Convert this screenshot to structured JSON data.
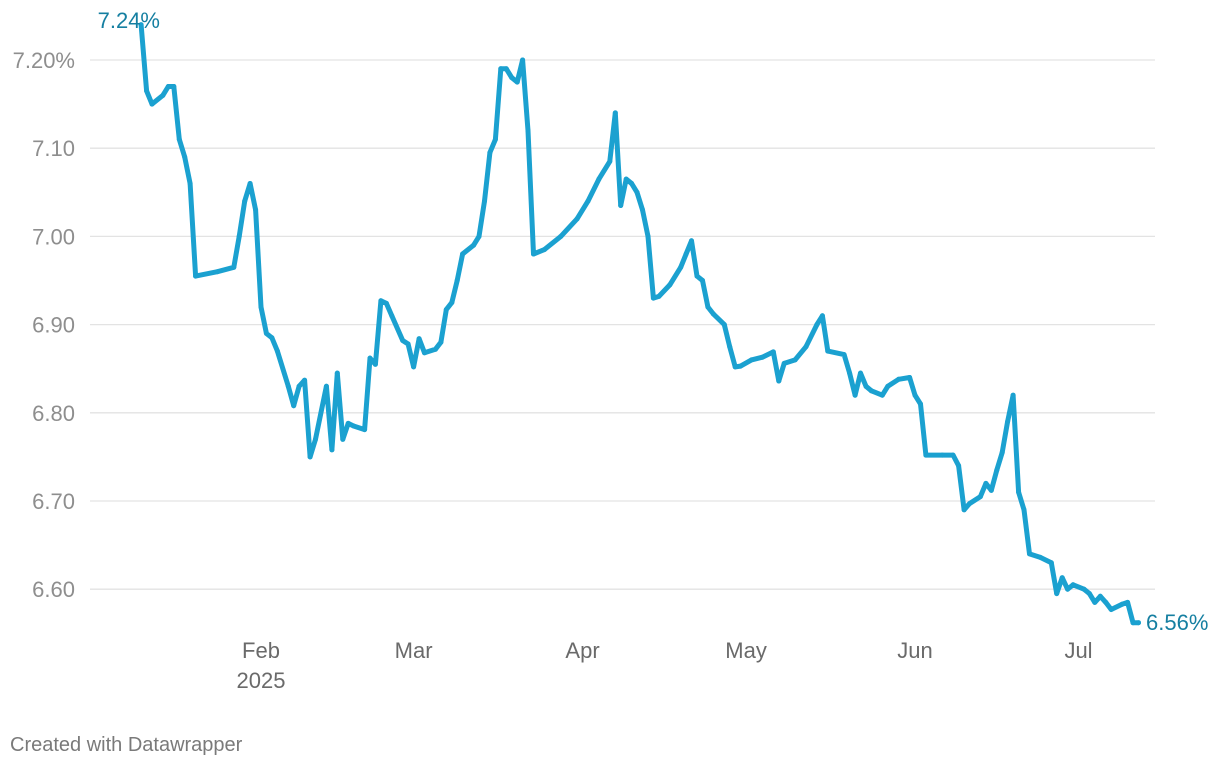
{
  "footer": {
    "credit": "Created with Datawrapper"
  },
  "colors": {
    "line": "#1ba1d0",
    "label": "#157fa1",
    "grid": "#e3e3e3",
    "tick": "#8e8e8e"
  },
  "chart_data": {
    "type": "line",
    "title": "",
    "xlabel": "",
    "ylabel": "",
    "grid": true,
    "legend": "none",
    "ylim": [
      6.56,
      7.24
    ],
    "y_ticks": [
      {
        "value": 7.2,
        "label": "7.20%"
      },
      {
        "value": 7.1,
        "label": "7.10"
      },
      {
        "value": 7.0,
        "label": "7.00"
      },
      {
        "value": 6.9,
        "label": "6.90"
      },
      {
        "value": 6.8,
        "label": "6.80"
      },
      {
        "value": 6.7,
        "label": "6.70"
      },
      {
        "value": 6.6,
        "label": "6.60"
      }
    ],
    "x_ticks": [
      {
        "date": "2025-02-01",
        "label": "Feb",
        "sublabel": "2025"
      },
      {
        "date": "2025-03-01",
        "label": "Mar"
      },
      {
        "date": "2025-04-01",
        "label": "Apr"
      },
      {
        "date": "2025-05-01",
        "label": "May"
      },
      {
        "date": "2025-06-01",
        "label": "Jun"
      },
      {
        "date": "2025-07-01",
        "label": "Jul"
      }
    ],
    "annotations": {
      "start": {
        "text": "7.24%",
        "date": "2025-01-10",
        "value": 7.24
      },
      "end": {
        "text": "6.56%",
        "date": "2025-07-17",
        "value": 6.56
      }
    },
    "series": [
      {
        "points": [
          [
            "2025-01-10",
            7.24
          ],
          [
            "2025-01-11",
            7.165
          ],
          [
            "2025-01-12",
            7.15
          ],
          [
            "2025-01-14",
            7.16
          ],
          [
            "2025-01-15",
            7.17
          ],
          [
            "2025-01-16",
            7.17
          ],
          [
            "2025-01-17",
            7.11
          ],
          [
            "2025-01-18",
            7.09
          ],
          [
            "2025-01-19",
            7.06
          ],
          [
            "2025-01-20",
            6.955
          ],
          [
            "2025-01-24",
            6.96
          ],
          [
            "2025-01-27",
            6.965
          ],
          [
            "2025-01-28",
            7.0
          ],
          [
            "2025-01-29",
            7.04
          ],
          [
            "2025-01-30",
            7.06
          ],
          [
            "2025-01-31",
            7.03
          ],
          [
            "2025-02-01",
            6.92
          ],
          [
            "2025-02-02",
            6.89
          ],
          [
            "2025-02-03",
            6.885
          ],
          [
            "2025-02-04",
            6.87
          ],
          [
            "2025-02-06",
            6.83
          ],
          [
            "2025-02-07",
            6.808
          ],
          [
            "2025-02-08",
            6.83
          ],
          [
            "2025-02-09",
            6.837
          ],
          [
            "2025-02-10",
            6.75
          ],
          [
            "2025-02-11",
            6.77
          ],
          [
            "2025-02-13",
            6.83
          ],
          [
            "2025-02-14",
            6.758
          ],
          [
            "2025-02-15",
            6.845
          ],
          [
            "2025-02-16",
            6.77
          ],
          [
            "2025-02-17",
            6.788
          ],
          [
            "2025-02-18",
            6.785
          ],
          [
            "2025-02-20",
            6.781
          ],
          [
            "2025-02-21",
            6.862
          ],
          [
            "2025-02-22",
            6.855
          ],
          [
            "2025-02-23",
            6.927
          ],
          [
            "2025-02-24",
            6.924
          ],
          [
            "2025-02-25",
            6.91
          ],
          [
            "2025-02-27",
            6.882
          ],
          [
            "2025-02-28",
            6.878
          ],
          [
            "2025-03-01",
            6.852
          ],
          [
            "2025-03-02",
            6.884
          ],
          [
            "2025-03-03",
            6.868
          ],
          [
            "2025-03-05",
            6.872
          ],
          [
            "2025-03-06",
            6.88
          ],
          [
            "2025-03-07",
            6.917
          ],
          [
            "2025-03-08",
            6.925
          ],
          [
            "2025-03-09",
            6.95
          ],
          [
            "2025-03-10",
            6.98
          ],
          [
            "2025-03-12",
            6.99
          ],
          [
            "2025-03-13",
            7.0
          ],
          [
            "2025-03-14",
            7.04
          ],
          [
            "2025-03-15",
            7.095
          ],
          [
            "2025-03-16",
            7.11
          ],
          [
            "2025-03-17",
            7.19
          ],
          [
            "2025-03-18",
            7.19
          ],
          [
            "2025-03-19",
            7.18
          ],
          [
            "2025-03-20",
            7.175
          ],
          [
            "2025-03-21",
            7.2
          ],
          [
            "2025-03-22",
            7.12
          ],
          [
            "2025-03-23",
            6.98
          ],
          [
            "2025-03-25",
            6.985
          ],
          [
            "2025-03-28",
            7.0
          ],
          [
            "2025-03-31",
            7.02
          ],
          [
            "2025-04-02",
            7.04
          ],
          [
            "2025-04-04",
            7.065
          ],
          [
            "2025-04-06",
            7.085
          ],
          [
            "2025-04-07",
            7.14
          ],
          [
            "2025-04-08",
            7.035
          ],
          [
            "2025-04-09",
            7.065
          ],
          [
            "2025-04-10",
            7.06
          ],
          [
            "2025-04-11",
            7.05
          ],
          [
            "2025-04-12",
            7.03
          ],
          [
            "2025-04-13",
            7.0
          ],
          [
            "2025-04-14",
            6.93
          ],
          [
            "2025-04-15",
            6.932
          ],
          [
            "2025-04-17",
            6.945
          ],
          [
            "2025-04-19",
            6.965
          ],
          [
            "2025-04-20",
            6.98
          ],
          [
            "2025-04-21",
            6.995
          ],
          [
            "2025-04-22",
            6.955
          ],
          [
            "2025-04-23",
            6.95
          ],
          [
            "2025-04-24",
            6.92
          ],
          [
            "2025-04-25",
            6.912
          ],
          [
            "2025-04-27",
            6.9
          ],
          [
            "2025-04-28",
            6.875
          ],
          [
            "2025-04-29",
            6.852
          ],
          [
            "2025-04-30",
            6.853
          ],
          [
            "2025-05-02",
            6.86
          ],
          [
            "2025-05-04",
            6.863
          ],
          [
            "2025-05-06",
            6.869
          ],
          [
            "2025-05-07",
            6.836
          ],
          [
            "2025-05-08",
            6.856
          ],
          [
            "2025-05-10",
            6.86
          ],
          [
            "2025-05-12",
            6.875
          ],
          [
            "2025-05-14",
            6.9
          ],
          [
            "2025-05-15",
            6.91
          ],
          [
            "2025-05-16",
            6.87
          ],
          [
            "2025-05-19",
            6.866
          ],
          [
            "2025-05-20",
            6.845
          ],
          [
            "2025-05-21",
            6.82
          ],
          [
            "2025-05-22",
            6.845
          ],
          [
            "2025-05-23",
            6.83
          ],
          [
            "2025-05-24",
            6.825
          ],
          [
            "2025-05-26",
            6.82
          ],
          [
            "2025-05-27",
            6.83
          ],
          [
            "2025-05-29",
            6.838
          ],
          [
            "2025-05-31",
            6.84
          ],
          [
            "2025-06-01",
            6.82
          ],
          [
            "2025-06-02",
            6.81
          ],
          [
            "2025-06-03",
            6.752
          ],
          [
            "2025-06-06",
            6.752
          ],
          [
            "2025-06-08",
            6.752
          ],
          [
            "2025-06-09",
            6.74
          ],
          [
            "2025-06-10",
            6.69
          ],
          [
            "2025-06-11",
            6.697
          ],
          [
            "2025-06-13",
            6.705
          ],
          [
            "2025-06-14",
            6.72
          ],
          [
            "2025-06-15",
            6.712
          ],
          [
            "2025-06-16",
            6.735
          ],
          [
            "2025-06-17",
            6.755
          ],
          [
            "2025-06-18",
            6.79
          ],
          [
            "2025-06-19",
            6.82
          ],
          [
            "2025-06-20",
            6.71
          ],
          [
            "2025-06-21",
            6.69
          ],
          [
            "2025-06-22",
            6.64
          ],
          [
            "2025-06-24",
            6.636
          ],
          [
            "2025-06-26",
            6.63
          ],
          [
            "2025-06-27",
            6.595
          ],
          [
            "2025-06-28",
            6.613
          ],
          [
            "2025-06-29",
            6.6
          ],
          [
            "2025-06-30",
            6.605
          ],
          [
            "2025-07-02",
            6.6
          ],
          [
            "2025-07-03",
            6.595
          ],
          [
            "2025-07-04",
            6.585
          ],
          [
            "2025-07-05",
            6.592
          ],
          [
            "2025-07-06",
            6.585
          ],
          [
            "2025-07-07",
            6.577
          ],
          [
            "2025-07-09",
            6.583
          ],
          [
            "2025-07-10",
            6.585
          ],
          [
            "2025-07-11",
            6.562
          ],
          [
            "2025-07-12",
            6.562
          ]
        ]
      }
    ]
  }
}
